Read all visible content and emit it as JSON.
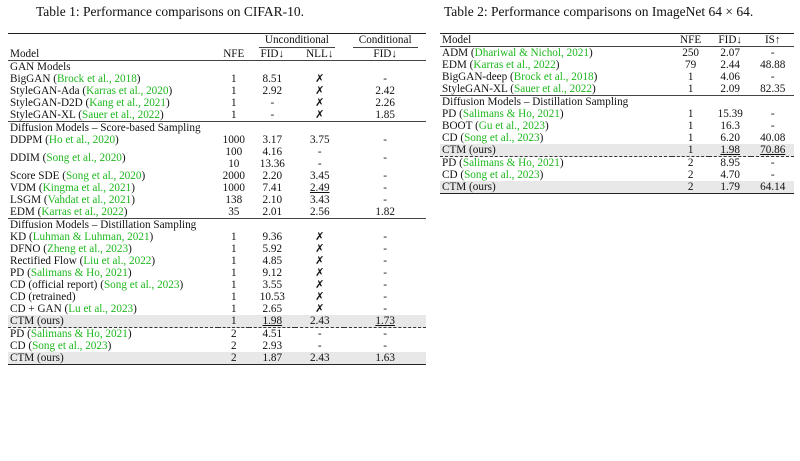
{
  "table1": {
    "caption": "Table 1: Performance comparisons on CIFAR-10.",
    "headers": {
      "model": "Model",
      "nfe": "NFE",
      "unconditional": "Unconditional",
      "conditional": "Conditional",
      "fid": "FID↓",
      "nll": "NLL↓",
      "fid_cond": "FID↓"
    },
    "sections": [
      {
        "title": "GAN Models",
        "rows": [
          {
            "name": "BigGAN",
            "cite": "Brock et al., 2018",
            "nfe": "1",
            "fid": "8.51",
            "nll": "✗",
            "fidc": "-"
          },
          {
            "name": "StyleGAN-Ada",
            "cite": "Karras et al., 2020",
            "nfe": "1",
            "fid": "2.92",
            "nll": "✗",
            "fidc": "2.42"
          },
          {
            "name": "StyleGAN-D2D",
            "cite": "Kang et al., 2021",
            "nfe": "1",
            "fid": "-",
            "nll": "✗",
            "fidc": "2.26"
          },
          {
            "name": "StyleGAN-XL",
            "cite": "Sauer et al., 2022",
            "nfe": "1",
            "fid": "-",
            "nll": "✗",
            "fidc": "1.85"
          }
        ]
      },
      {
        "title": "Diffusion Models – Score-based Sampling",
        "rows": [
          {
            "name": "DDPM",
            "cite": "Ho et al., 2020",
            "nfe": "1000",
            "fid": "3.17",
            "nll": "3.75",
            "fidc": "-"
          },
          {
            "name": "DDIM",
            "cite": "Song et al., 2020",
            "nfe": "100",
            "fid": "4.16",
            "nll": "-",
            "fidc": "-",
            "nfe2": "10",
            "fid2": "13.36",
            "nll2": "-"
          },
          {
            "name": "Score SDE",
            "cite": "Song et al., 2020",
            "nfe": "2000",
            "fid": "2.20",
            "nll": "3.45",
            "fidc": "-"
          },
          {
            "name": "VDM",
            "cite": "Kingma et al., 2021",
            "nfe": "1000",
            "fid": "7.41",
            "nll": "2.49",
            "nll_u": true,
            "fidc": "-"
          },
          {
            "name": "LSGM",
            "cite": "Vahdat et al., 2021",
            "nfe": "138",
            "fid": "2.10",
            "nll": "3.43",
            "fidc": "-"
          },
          {
            "name": "EDM",
            "cite": "Karras et al., 2022",
            "nfe": "35",
            "fid": "2.01",
            "nll": "2.56",
            "fidc": "1.82"
          }
        ]
      },
      {
        "title": "Diffusion Models – Distillation Sampling",
        "rows": [
          {
            "name": "KD",
            "cite": "Luhman & Luhman, 2021",
            "nfe": "1",
            "fid": "9.36",
            "nll": "✗",
            "fidc": "-"
          },
          {
            "name": "DFNO",
            "cite": "Zheng et al., 2023",
            "nfe": "1",
            "fid": "5.92",
            "nll": "✗",
            "fidc": "-"
          },
          {
            "name": "Rectified Flow",
            "cite": "Liu et al., 2022",
            "nfe": "1",
            "fid": "4.85",
            "nll": "✗",
            "fidc": "-"
          },
          {
            "name": "PD",
            "cite": "Salimans & Ho, 2021",
            "nfe": "1",
            "fid": "9.12",
            "nll": "✗",
            "fidc": "-"
          },
          {
            "name": "CD (official report)",
            "cite": "Song et al., 2023",
            "nfe": "1",
            "fid": "3.55",
            "nll": "✗",
            "fidc": "-"
          },
          {
            "name": "CD (retrained)",
            "cite": "",
            "nfe": "1",
            "fid": "10.53",
            "nll": "✗",
            "fidc": "-"
          },
          {
            "name": "CD + GAN",
            "cite": "Lu et al., 2023",
            "nfe": "1",
            "fid": "2.65",
            "nll": "✗",
            "fidc": "-"
          },
          {
            "name": "CTM (ours)",
            "cite": "",
            "nfe": "1",
            "fid": "1.98",
            "nll": "2.43",
            "fidc": "1.73",
            "shade": true,
            "fid_u": true,
            "nll_b": true,
            "fidc_u": true
          }
        ]
      }
    ],
    "multistep": [
      {
        "name": "PD",
        "cite": "Salimans & Ho, 2021",
        "nfe": "2",
        "fid": "4.51",
        "nll": "-",
        "fidc": "-"
      },
      {
        "name": "CD",
        "cite": "Song et al., 2023",
        "nfe": "2",
        "fid": "2.93",
        "nll": "-",
        "fidc": "-"
      },
      {
        "name": "CTM (ours)",
        "cite": "",
        "nfe": "2",
        "fid": "1.87",
        "nll": "2.43",
        "fidc": "1.63",
        "shade": true,
        "fid_b": true,
        "nll_b": true,
        "fidc_b": true
      }
    ]
  },
  "table2": {
    "caption": "Table 2: Performance comparisons on ImageNet 64 × 64.",
    "headers": {
      "model": "Model",
      "nfe": "NFE",
      "fid": "FID↓",
      "is": "IS↑"
    },
    "top": [
      {
        "name": "ADM",
        "cite": "Dhariwal & Nichol, 2021",
        "nfe": "250",
        "fid": "2.07",
        "is": "-"
      },
      {
        "name": "EDM",
        "cite": "Karras et al., 2022",
        "nfe": "79",
        "fid": "2.44",
        "is": "48.88"
      },
      {
        "name": "BigGAN-deep",
        "cite": "Brock et al., 2018",
        "nfe": "1",
        "fid": "4.06",
        "is": "-"
      },
      {
        "name": "StyleGAN-XL",
        "cite": "Sauer et al., 2022",
        "nfe": "1",
        "fid": "2.09",
        "is": "82.35",
        "is_b": true
      }
    ],
    "section_title": "Diffusion Models – Distillation Sampling",
    "distill": [
      {
        "name": "PD",
        "cite": "Salimans & Ho, 2021",
        "nfe": "1",
        "fid": "15.39",
        "is": "-"
      },
      {
        "name": "BOOT",
        "cite": "Gu et al., 2023",
        "nfe": "1",
        "fid": "16.3",
        "is": "-"
      },
      {
        "name": "CD",
        "cite": "Song et al., 2023",
        "nfe": "1",
        "fid": "6.20",
        "is": "40.08"
      },
      {
        "name": "CTM (ours)",
        "cite": "",
        "nfe": "1",
        "fid": "1.98",
        "is": "70.86",
        "shade": true,
        "fid_u": true,
        "is_u": true
      }
    ],
    "multistep": [
      {
        "name": "PD",
        "cite": "Salimans & Ho, 2021",
        "nfe": "2",
        "fid": "8.95",
        "is": "-"
      },
      {
        "name": "CD",
        "cite": "Song et al., 2023",
        "nfe": "2",
        "fid": "4.70",
        "is": "-"
      },
      {
        "name": "CTM (ours)",
        "cite": "",
        "nfe": "2",
        "fid": "1.79",
        "is": "64.14",
        "shade": true,
        "fid_b": true
      }
    ]
  }
}
